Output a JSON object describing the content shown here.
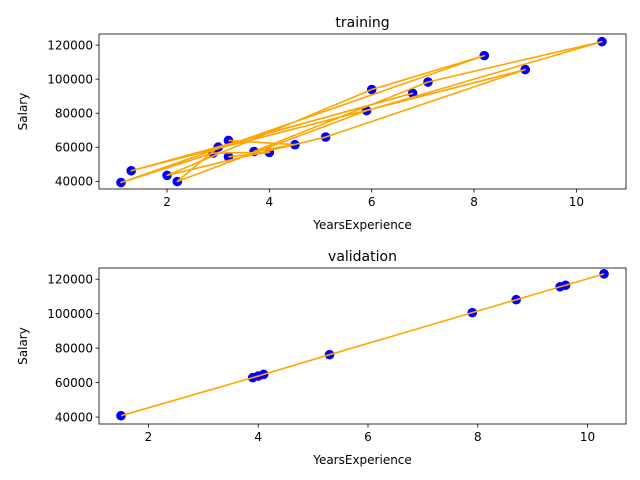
{
  "chart_data": [
    {
      "type": "scatter",
      "title": "training",
      "xlabel": "YearsExperience",
      "ylabel": "Salary",
      "xlim": [
        0.67,
        10.97
      ],
      "ylim": [
        35500,
        126500
      ],
      "xticks": [
        2,
        4,
        6,
        8,
        10
      ],
      "yticks": [
        40000,
        60000,
        80000,
        100000,
        120000
      ],
      "grid": false,
      "colors": {
        "points": "#0000ff",
        "line": "#ffa500"
      },
      "series": [
        {
          "kind": "scatter",
          "x": [
            3.2,
            4.5,
            3.7,
            7.1,
            10.5,
            5.9,
            2.2,
            3.0,
            6.8,
            1.3,
            9.0,
            5.1,
            2.0,
            6.0,
            8.2,
            1.1,
            2.9,
            4.0,
            3.2
          ],
          "y": [
            64000,
            61500,
            57500,
            98300,
            122000,
            81500,
            39900,
            60100,
            91700,
            46200,
            105600,
            66000,
            43500,
            93900,
            113800,
            39300,
            56600,
            57000,
            54400
          ]
        },
        {
          "kind": "line",
          "x": [
            3.2,
            4.5,
            3.7,
            7.1,
            10.5,
            5.9,
            2.2,
            3.0,
            6.8,
            1.3,
            9.0,
            5.1,
            2.0,
            6.0,
            8.2,
            1.1,
            2.9,
            4.0,
            3.2
          ],
          "y": [
            64000,
            61500,
            57500,
            98300,
            122000,
            81500,
            39900,
            60100,
            91700,
            46200,
            105600,
            66000,
            43500,
            93900,
            113800,
            39300,
            56600,
            57000,
            54400
          ]
        }
      ]
    },
    {
      "type": "scatter",
      "title": "validation",
      "xlabel": "YearsExperience",
      "ylabel": "Salary",
      "xlim": [
        1.1,
        10.7
      ],
      "ylim": [
        36000,
        126500
      ],
      "xticks": [
        2,
        4,
        6,
        8,
        10
      ],
      "yticks": [
        40000,
        60000,
        80000,
        100000,
        120000
      ],
      "grid": false,
      "colors": {
        "points": "#0000ff",
        "line": "#ffa500"
      },
      "series": [
        {
          "kind": "scatter",
          "x": [
            1.5,
            3.9,
            4.0,
            4.1,
            5.3,
            7.9,
            8.7,
            9.5,
            9.6,
            10.3
          ],
          "y": [
            40800,
            62900,
            63800,
            64800,
            76200,
            100600,
            108100,
            115600,
            116500,
            123100
          ]
        },
        {
          "kind": "line",
          "x": [
            1.5,
            3.9,
            4.0,
            4.1,
            5.3,
            7.9,
            8.7,
            9.5,
            9.6,
            10.3
          ],
          "y": [
            40800,
            62900,
            63800,
            64800,
            76200,
            100600,
            108100,
            115600,
            116500,
            123100
          ]
        }
      ]
    }
  ]
}
